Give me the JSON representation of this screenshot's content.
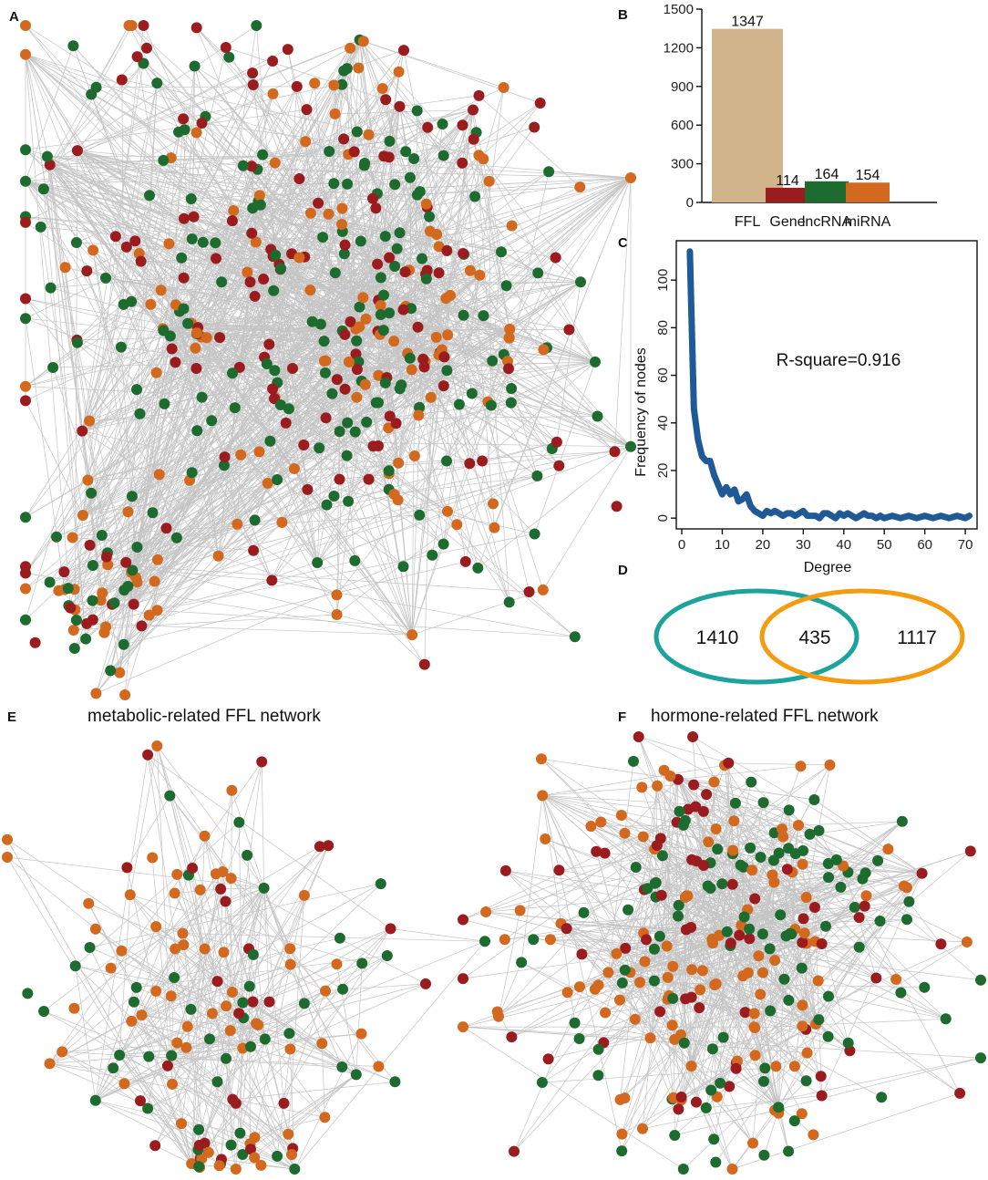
{
  "panels": {
    "a": "A",
    "b": "B",
    "c": "C",
    "d": "D",
    "e": "E",
    "f": "F"
  },
  "titles": {
    "e": "metabolic-related FFL network",
    "f": "hormone-related FFL network"
  },
  "colors": {
    "gene": "#9b1c1f",
    "lncrna": "#1e6b2f",
    "mirna": "#d2691e",
    "ffl": "#d2b48c",
    "edge": "#c4c4c4",
    "curve": "#1f5a96",
    "venn_left": "#1ba39c",
    "venn_right": "#f39c12"
  },
  "networks": {
    "a": {
      "nodes": 470,
      "edges": 1200,
      "seed": 11,
      "gene_frac": 0.3,
      "lnc_frac": 0.38
    },
    "e": {
      "nodes": 140,
      "edges": 300,
      "seed": 23,
      "gene_frac": 0.18,
      "lnc_frac": 0.37
    },
    "f": {
      "nodes": 290,
      "edges": 720,
      "seed": 37,
      "gene_frac": 0.2,
      "lnc_frac": 0.38
    }
  },
  "chart_data": [
    {
      "type": "bar",
      "panel": "B",
      "categories": [
        "FFL",
        "Gene",
        "lncRNA",
        "miRNA"
      ],
      "values": [
        1347,
        114,
        164,
        154
      ],
      "colors": [
        "#d2b48c",
        "#9b1c1f",
        "#1e6b2f",
        "#d2691e"
      ],
      "ylim": [
        0,
        1500
      ],
      "yticks": [
        0,
        300,
        600,
        900,
        1200,
        1500
      ],
      "xlabel": "",
      "ylabel": ""
    },
    {
      "type": "line",
      "panel": "C",
      "xlabel": "Degree",
      "ylabel": "Frequency of nodes",
      "annotation": "R-square=0.916",
      "xlim": [
        0,
        72
      ],
      "ylim": [
        -3,
        115
      ],
      "xticks": [
        0,
        10,
        20,
        30,
        40,
        50,
        60,
        70
      ],
      "yticks": [
        0,
        20,
        40,
        60,
        80,
        100
      ],
      "x": [
        2,
        3,
        4,
        5,
        6,
        7,
        8,
        9,
        10,
        11,
        12,
        13,
        14,
        15,
        16,
        17,
        18,
        19,
        20,
        21,
        22,
        23,
        24,
        25,
        26,
        27,
        28,
        29,
        30,
        31,
        32,
        33,
        34,
        35,
        36,
        37,
        38,
        39,
        40,
        41,
        42,
        43,
        44,
        45,
        46,
        47,
        48,
        49,
        50,
        52,
        54,
        56,
        58,
        60,
        62,
        64,
        66,
        68,
        70,
        71
      ],
      "y": [
        112,
        46,
        33,
        26,
        24,
        24,
        18,
        14,
        10,
        13,
        10,
        12,
        7,
        8,
        10,
        5,
        3,
        2,
        1,
        3,
        2,
        3,
        2,
        1,
        2,
        2,
        1,
        2,
        3,
        1,
        1,
        1,
        0,
        2,
        2,
        1,
        0,
        2,
        1,
        2,
        1,
        0,
        1,
        2,
        1,
        1,
        0,
        1,
        0,
        1,
        0,
        1,
        0,
        1,
        0,
        1,
        0,
        1,
        0,
        1
      ]
    },
    {
      "type": "venn",
      "panel": "D",
      "sets": [
        {
          "name": "left",
          "only": 1410
        },
        {
          "name": "right",
          "only": 1117
        }
      ],
      "intersection": 435
    }
  ]
}
